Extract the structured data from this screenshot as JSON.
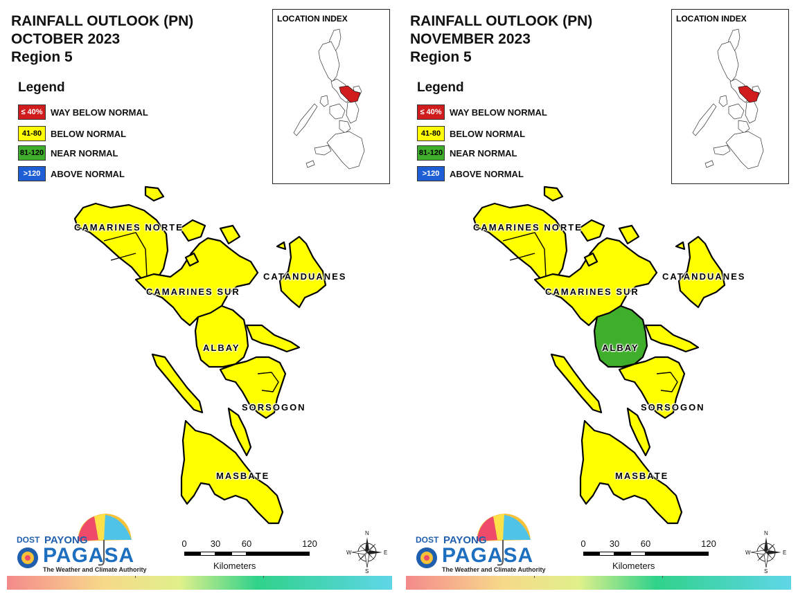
{
  "panels": [
    {
      "title_line1": "RAINFALL OUTLOOK (PN)",
      "title_line2": "OCTOBER 2023",
      "title_line3": "Region 5",
      "albay_color": "#ffff00",
      "sorsogon_color": "#ffff00"
    },
    {
      "title_line1": "RAINFALL OUTLOOK (PN)",
      "title_line2": "NOVEMBER 2023",
      "title_line3": "Region 5",
      "albay_color": "#3fae2a",
      "sorsogon_color": "#ffff00"
    }
  ],
  "legend": {
    "title": "Legend",
    "items": [
      {
        "range": "≤ 40%",
        "label": "WAY BELOW NORMAL",
        "color": "#d01c1c",
        "text_color": "#ffffff"
      },
      {
        "range": "41-80",
        "label": "BELOW NORMAL",
        "color": "#ffff00",
        "text_color": "#000000"
      },
      {
        "range": "81-120",
        "label": "NEAR NORMAL",
        "color": "#3fae2a",
        "text_color": "#000000"
      },
      {
        "range": ">120",
        "label": "ABOVE NORMAL",
        "color": "#1f5fd6",
        "text_color": "#ffffff"
      }
    ]
  },
  "location_index": {
    "title": "LOCATION INDEX",
    "highlight_color": "#d01c1c"
  },
  "provinces": {
    "camarines_norte": "CAMARINES NORTE",
    "camarines_sur": "CAMARINES SUR",
    "catanduanes": "CATANDUANES",
    "albay": "ALBAY",
    "sorsogon": "SORSOGON",
    "masbate": "MASBATE"
  },
  "scale_bar": {
    "ticks": [
      "0",
      "30",
      "60",
      "120"
    ],
    "unit": "Kilometers"
  },
  "compass": {
    "n": "N",
    "s": "S",
    "e": "E",
    "w": "W"
  },
  "logo": {
    "dost": "DOST",
    "payong": "PAYONG",
    "pagasa": "PAGASA",
    "tagline": "The Weather and Climate Authority"
  }
}
